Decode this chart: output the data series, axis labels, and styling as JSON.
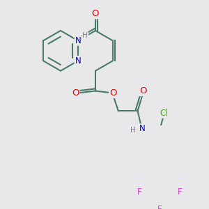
{
  "bg_color": "#e8e8ea",
  "bond_color": "#4a7a6a",
  "bond_width": 1.5,
  "atom_colors": {
    "O": "#dd0000",
    "N": "#0000cc",
    "H": "#808090",
    "Cl": "#33bb00",
    "F": "#cc44cc",
    "C": "#4a7a6a"
  },
  "font_size": 8.5,
  "fig_size": [
    3.0,
    3.0
  ],
  "dpi": 100
}
